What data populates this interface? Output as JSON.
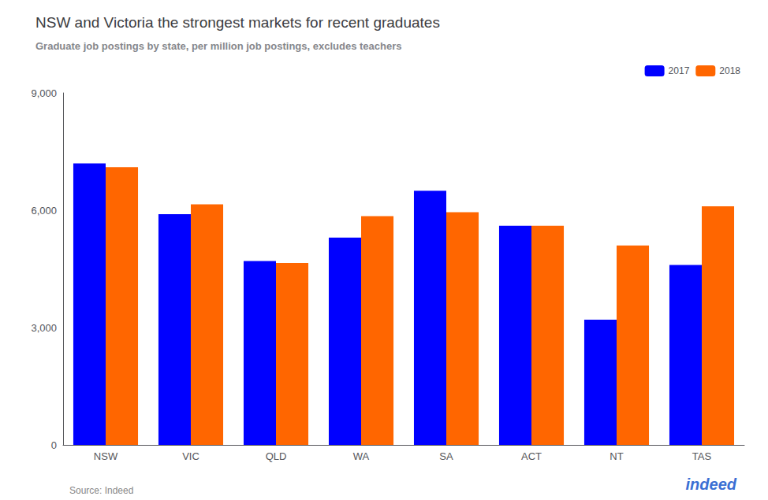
{
  "chart_data": {
    "type": "bar",
    "title": "NSW and Victoria the strongest markets for recent graduates",
    "subtitle": "Graduate job postings by state, per million job postings, excludes teachers",
    "annotations": [
      "Source: Indeed",
      "indeed"
    ],
    "categories": [
      "NSW",
      "VIC",
      "QLD",
      "WA",
      "SA",
      "ACT",
      "NT",
      "TAS"
    ],
    "series": [
      {
        "name": "2017",
        "color": "#0000ff",
        "values": [
          7200,
          5900,
          4700,
          5300,
          6500,
          5600,
          3200,
          4600
        ]
      },
      {
        "name": "2018",
        "color": "#ff6600",
        "values": [
          7100,
          6150,
          4650,
          5850,
          5950,
          5600,
          5100,
          6100
        ]
      }
    ],
    "ylim": [
      0,
      9000
    ],
    "yticks": [
      0,
      {
        "value": 3000,
        "label": "3,000"
      },
      {
        "value": 6000,
        "label": "6,000"
      },
      {
        "value": 9000,
        "label": "9,000"
      }
    ],
    "grid": false,
    "legend": "upper right"
  }
}
